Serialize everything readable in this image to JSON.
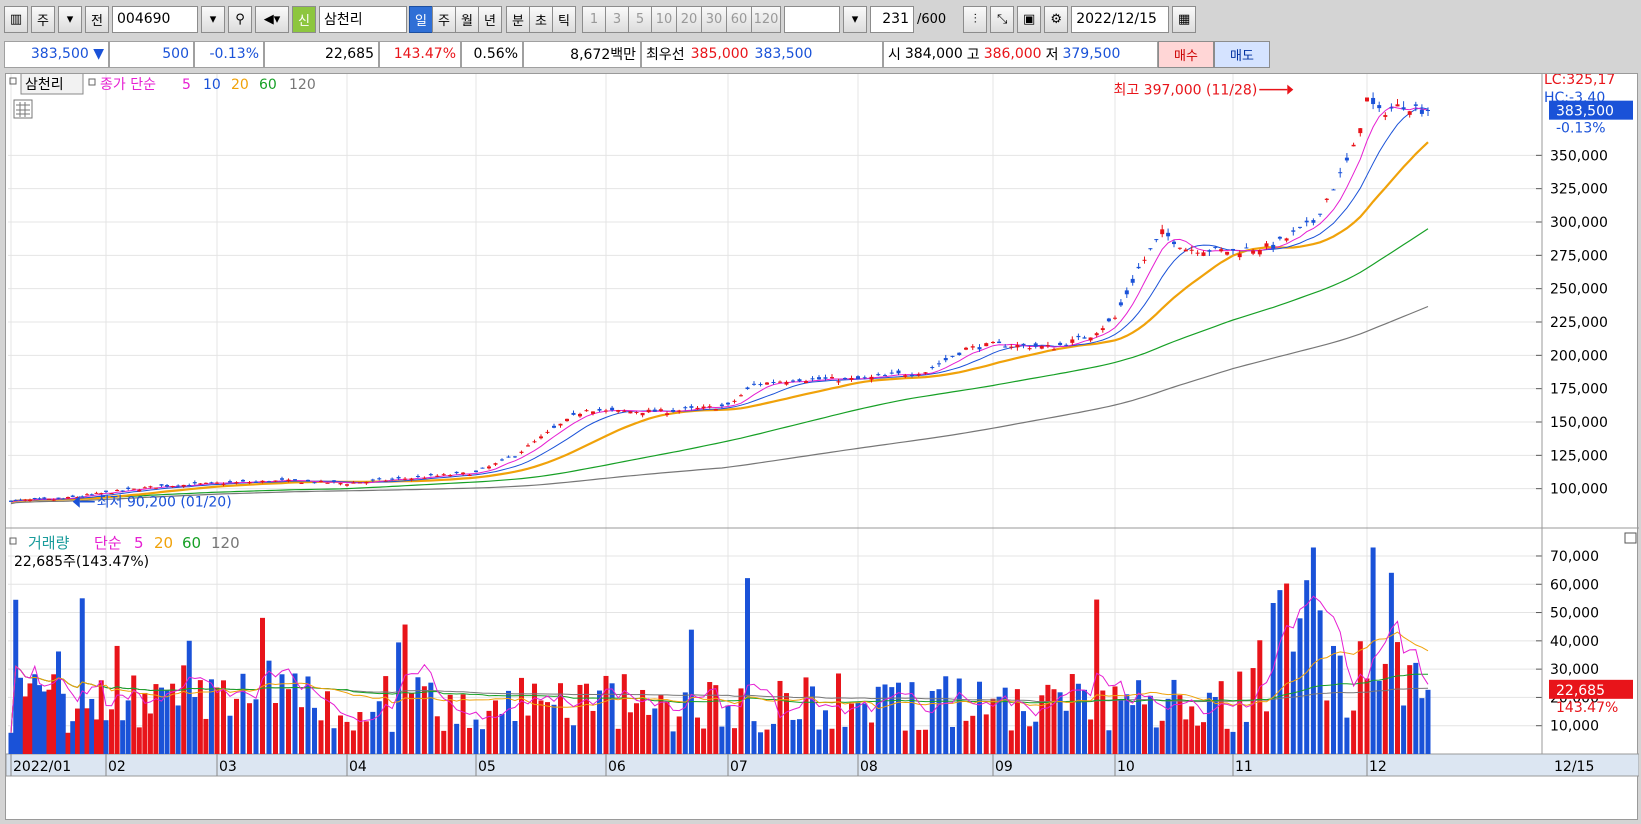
{
  "toolbar": {
    "week_btn": "주",
    "prev_btn": "전",
    "code": "004690",
    "credit_badge": "신",
    "stock_name": "삼천리",
    "periods": [
      "일",
      "주",
      "월",
      "년",
      "분",
      "초",
      "틱"
    ],
    "intervals": [
      "1",
      "3",
      "5",
      "10",
      "20",
      "30",
      "60",
      "120"
    ],
    "count": "231",
    "count_max": "/600",
    "date": "2022/12/15"
  },
  "quote": {
    "price": "383,500",
    "change": "500",
    "change_pct": "-0.13%",
    "volume": "22,685",
    "volume_ratio": "143.47%",
    "turnover": "0.56%",
    "amount": "8,672백만",
    "best_label": "최우선",
    "best_ask": "385,000",
    "best_bid": "383,500",
    "open_label": "시",
    "open": "384,000",
    "high_label": "고",
    "high": "386,000",
    "low_label": "저",
    "low": "379,500",
    "buy_btn": "매수",
    "sell_btn": "매도"
  },
  "colors": {
    "up": "#e8141a",
    "down": "#1a52d8",
    "ma5": "#e61fd2",
    "ma10": "#1a52d8",
    "ma20": "#f0a20a",
    "ma60": "#17a026",
    "ma120": "#777777"
  },
  "chart_data": [
    {
      "type": "candlestick",
      "title": "삼천리",
      "legend": {
        "label": "종가 단순",
        "periods": [
          "5",
          "10",
          "20",
          "60",
          "120"
        ]
      },
      "x_ticks": [
        "2022/01",
        "02",
        "03",
        "04",
        "05",
        "06",
        "07",
        "08",
        "09",
        "10",
        "11",
        "12"
      ],
      "x_end_label": "12/15",
      "y_ticks": [
        100000,
        125000,
        150000,
        175000,
        200000,
        225000,
        250000,
        275000,
        300000,
        325000,
        350000
      ],
      "y_tick_labels": [
        "100,000",
        "125,000",
        "150,000",
        "175,000",
        "200,000",
        "225,000",
        "250,000",
        "275,000",
        "300,000",
        "325,000",
        "350,000"
      ],
      "ylim": [
        72000,
        405000
      ],
      "last_price_label": "383,500",
      "last_change_label": "-0.13%",
      "corner_lc": "LC:325,17",
      "corner_hc": "HC:-3.40",
      "high_annotation": "최고 397,000 (11/28)",
      "low_annotation": "최저 90,200 (01/20)",
      "close_anchors": [
        {
          "m": 0,
          "v": 91000
        },
        {
          "m": 0.5,
          "v": 92000
        },
        {
          "m": 1,
          "v": 97000
        },
        {
          "m": 1.5,
          "v": 102000
        },
        {
          "m": 2,
          "v": 104000
        },
        {
          "m": 2.5,
          "v": 106000
        },
        {
          "m": 3,
          "v": 104000
        },
        {
          "m": 3.5,
          "v": 108000
        },
        {
          "m": 4,
          "v": 112000
        },
        {
          "m": 4.3,
          "v": 125000
        },
        {
          "m": 4.6,
          "v": 145000
        },
        {
          "m": 4.85,
          "v": 160000
        },
        {
          "m": 5,
          "v": 158000
        },
        {
          "m": 5.5,
          "v": 158000
        },
        {
          "m": 6,
          "v": 162000
        },
        {
          "m": 6.2,
          "v": 178000
        },
        {
          "m": 6.5,
          "v": 182000
        },
        {
          "m": 7,
          "v": 182000
        },
        {
          "m": 7.5,
          "v": 188000
        },
        {
          "m": 7.8,
          "v": 205000
        },
        {
          "m": 8,
          "v": 208000
        },
        {
          "m": 8.5,
          "v": 206000
        },
        {
          "m": 8.8,
          "v": 215000
        },
        {
          "m": 9,
          "v": 228000
        },
        {
          "m": 9.2,
          "v": 265000
        },
        {
          "m": 9.4,
          "v": 292000
        },
        {
          "m": 9.6,
          "v": 280000
        },
        {
          "m": 10,
          "v": 278000
        },
        {
          "m": 10.3,
          "v": 282000
        },
        {
          "m": 10.6,
          "v": 300000
        },
        {
          "m": 10.8,
          "v": 335000
        },
        {
          "m": 10.9,
          "v": 355000
        },
        {
          "m": 11,
          "v": 392000
        },
        {
          "m": 11.1,
          "v": 382000
        },
        {
          "m": 11.3,
          "v": 388000
        },
        {
          "m": 11.5,
          "v": 383500
        }
      ]
    },
    {
      "type": "bar",
      "title": "거래량",
      "legend": {
        "label": "단순",
        "periods": [
          "5",
          "20",
          "60",
          "120"
        ]
      },
      "info": "22,685주(143.47%)",
      "y_ticks": [
        10000,
        20000,
        30000,
        40000,
        50000,
        60000,
        70000
      ],
      "y_tick_labels": [
        "10,000",
        "20,000",
        "30,000",
        "40,000",
        "50,000",
        "60,000",
        "70,000"
      ],
      "ylim": [
        0,
        76000
      ],
      "last_volume_label": "22,685",
      "last_ratio_label": "143.47%",
      "base_volume": 15000
    }
  ]
}
